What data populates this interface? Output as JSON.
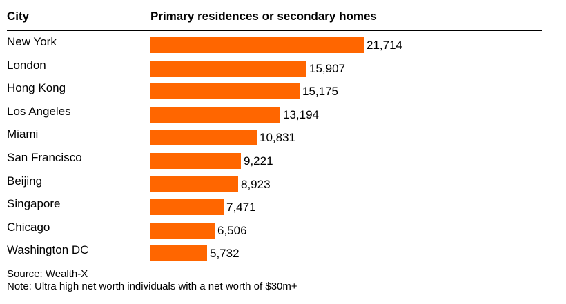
{
  "chart_data": {
    "type": "bar",
    "orientation": "horizontal",
    "column_headers": {
      "category": "City",
      "value": "Primary residences or secondary homes"
    },
    "categories": [
      "New York",
      "London",
      "Hong Kong",
      "Los Angeles",
      "Miami",
      "San Francisco",
      "Beijing",
      "Singapore",
      "Chicago",
      "Washington DC"
    ],
    "values": [
      21714,
      15907,
      15175,
      13194,
      10831,
      9221,
      8923,
      7471,
      6506,
      5732
    ],
    "value_labels": [
      "21,714",
      "15,907",
      "15,175",
      "13,194",
      "10,831",
      "9,221",
      "8,923",
      "7,471",
      "6,506",
      "5,732"
    ],
    "xlim": [
      0,
      21714
    ],
    "bar_color": "#ff6600",
    "grid": false
  },
  "footer": {
    "source": "Source: Wealth-X",
    "note": "Note: Ultra high net worth individuals with a net worth of $30m+"
  }
}
